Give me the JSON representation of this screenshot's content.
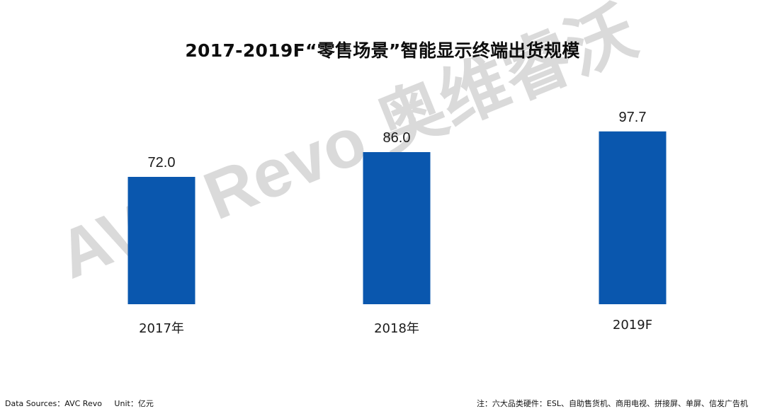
{
  "chart_data": {
    "type": "bar",
    "title": "2017-2019F“零售场景”智能显示终端出货规模",
    "categories": [
      "2017年",
      "2018年",
      "2019F"
    ],
    "values": [
      72.0,
      86.0,
      97.7
    ],
    "value_labels": [
      "72.0",
      "86.0",
      "97.7"
    ],
    "ylim": [
      0,
      115
    ],
    "grid": false,
    "legend": "none",
    "bar_color": "#0a57ae"
  },
  "watermark": {
    "text": "AVC Revo 奥维睿沃",
    "color": "#b8b8b8"
  },
  "footer": {
    "source": "Data Sources：AVC Revo     Unit：亿元",
    "note": "注：六大品类硬件：ESL、自助售货机、商用电视、拼接屏、单屏、信发广告机"
  }
}
